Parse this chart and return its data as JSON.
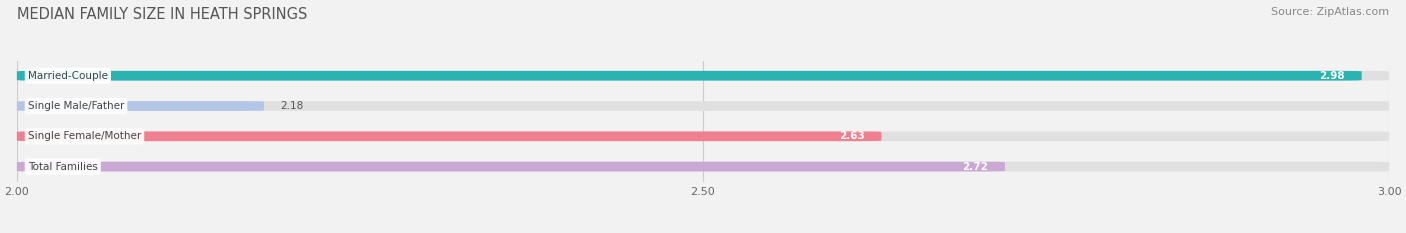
{
  "title": "MEDIAN FAMILY SIZE IN HEATH SPRINGS",
  "source": "Source: ZipAtlas.com",
  "categories": [
    "Married-Couple",
    "Single Male/Father",
    "Single Female/Mother",
    "Total Families"
  ],
  "values": [
    2.98,
    2.18,
    2.63,
    2.72
  ],
  "bar_colors": [
    "#2ab3b0",
    "#b3c6e8",
    "#f08090",
    "#c9a8d4"
  ],
  "value_label_inside": [
    true,
    false,
    true,
    true
  ],
  "xmin": 2.0,
  "xmax": 3.0,
  "xticks": [
    2.0,
    2.5,
    3.0
  ],
  "bar_height": 0.32,
  "bar_gap": 0.68,
  "background_color": "#f2f2f2",
  "bar_bg_color": "#e0e0e0",
  "title_fontsize": 10.5,
  "source_fontsize": 8,
  "label_fontsize": 7.5,
  "value_fontsize": 7.5,
  "tick_fontsize": 8
}
